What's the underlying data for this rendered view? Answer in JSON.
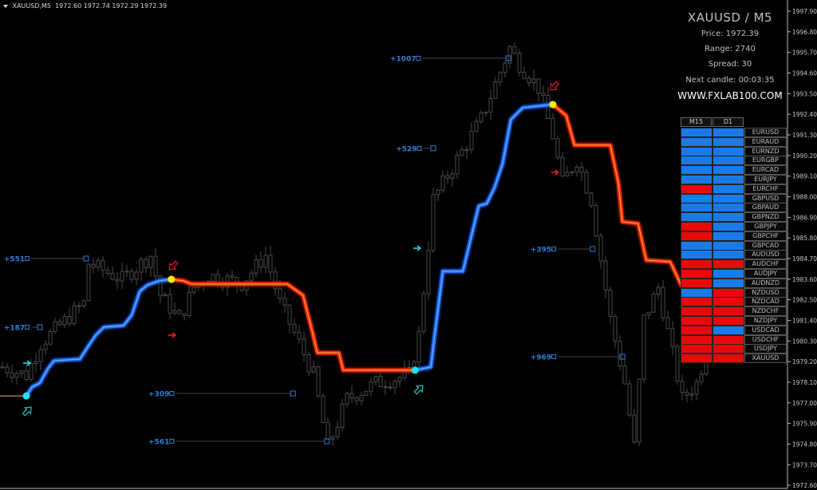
{
  "header": {
    "symbol_tf": "XAUUSD,M5",
    "ohlc": "1972.60 1972.74 1972.29 1972.39"
  },
  "panel": {
    "title": "XAUUSD  /  M5",
    "price": "Price: 1972.39",
    "range": "Range: 2740",
    "spread": "Spread: 30",
    "next_candle": "Next candle: 00:03:35",
    "website": "WWW.FXLAB100.COM",
    "columns": [
      "M15",
      "D1"
    ],
    "colors": {
      "up": "#1a7be8",
      "down": "#e80a0a"
    },
    "rows": [
      {
        "symbol": "EURUSD",
        "m15": "up",
        "d1": "up"
      },
      {
        "symbol": "EURAUD",
        "m15": "up",
        "d1": "up"
      },
      {
        "symbol": "EURNZD",
        "m15": "up",
        "d1": "up"
      },
      {
        "symbol": "EURGBP",
        "m15": "up",
        "d1": "up"
      },
      {
        "symbol": "EURCAD",
        "m15": "up",
        "d1": "up"
      },
      {
        "symbol": "EURJPY",
        "m15": "up",
        "d1": "up"
      },
      {
        "symbol": "EURCHF",
        "m15": "down",
        "d1": "up"
      },
      {
        "symbol": "GBPUSD",
        "m15": "up",
        "d1": "up"
      },
      {
        "symbol": "GBPAUD",
        "m15": "up",
        "d1": "up"
      },
      {
        "symbol": "GBPNZD",
        "m15": "up",
        "d1": "up"
      },
      {
        "symbol": "GBPJPY",
        "m15": "down",
        "d1": "up"
      },
      {
        "symbol": "GBPCHF",
        "m15": "down",
        "d1": "up"
      },
      {
        "symbol": "GBPCAD",
        "m15": "up",
        "d1": "up"
      },
      {
        "symbol": "AUDUSD",
        "m15": "up",
        "d1": "up"
      },
      {
        "symbol": "AUDCHF",
        "m15": "down",
        "d1": "down"
      },
      {
        "symbol": "AUDJPY",
        "m15": "down",
        "d1": "up"
      },
      {
        "symbol": "AUDNZD",
        "m15": "down",
        "d1": "up"
      },
      {
        "symbol": "NZDUSD",
        "m15": "up",
        "d1": "down"
      },
      {
        "symbol": "NZDCAD",
        "m15": "down",
        "d1": "down"
      },
      {
        "symbol": "NZDCHF",
        "m15": "down",
        "d1": "down"
      },
      {
        "symbol": "NZDJPY",
        "m15": "down",
        "d1": "down"
      },
      {
        "symbol": "USDCAD",
        "m15": "down",
        "d1": "up"
      },
      {
        "symbol": "USDCHF",
        "m15": "down",
        "d1": "down"
      },
      {
        "symbol": "USDJPY",
        "m15": "down",
        "d1": "down"
      },
      {
        "symbol": "XAUUSD",
        "m15": "down",
        "d1": "down"
      }
    ]
  },
  "chart_data": {
    "type": "candlestick",
    "price_axis": {
      "max": 1997.9,
      "min": 1972.6,
      "step": 1.1,
      "ticks": [
        "1997.90",
        "1996.80",
        "1995.70",
        "1994.60",
        "1993.50",
        "1992.40",
        "1991.30",
        "1990.20",
        "1989.10",
        "1988.00",
        "1986.90",
        "1985.80",
        "1984.70",
        "1983.60",
        "1982.50",
        "1981.40",
        "1980.30",
        "1979.20",
        "1978.10",
        "1977.00",
        "1975.90",
        "1974.80",
        "1973.70",
        "1972.60"
      ]
    },
    "colors": {
      "up_trend": "#1a6cff",
      "down_trend": "#ff2a00",
      "candle": "#4a4a4a",
      "label": "#2f7fd8"
    },
    "approx_price_path": [
      [
        0,
        1978.91
      ],
      [
        5,
        1978.48
      ],
      [
        8,
        1980.18
      ],
      [
        17,
        1982.31
      ],
      [
        18,
        1984.44
      ],
      [
        25,
        1983.59
      ],
      [
        31,
        1984.87
      ],
      [
        33,
        1982.74
      ],
      [
        37,
        1981.46
      ],
      [
        40,
        1983.17
      ],
      [
        43,
        1983.8
      ],
      [
        50,
        1983.38
      ],
      [
        55,
        1984.87
      ],
      [
        58,
        1982.31
      ],
      [
        62,
        1980.18
      ],
      [
        65,
        1978.48
      ],
      [
        68,
        1974.65
      ],
      [
        72,
        1977.2
      ],
      [
        78,
        1978.05
      ],
      [
        85,
        1978.48
      ],
      [
        87,
        1980.61
      ],
      [
        90,
        1987.85
      ],
      [
        93,
        1989.13
      ],
      [
        100,
        1992.11
      ],
      [
        106,
        1995.94
      ],
      [
        108,
        1995.09
      ],
      [
        112,
        1993.81
      ],
      [
        115,
        1991.26
      ],
      [
        117,
        1988.7
      ],
      [
        120,
        1989.98
      ],
      [
        123,
        1987.85
      ],
      [
        127,
        1981.46
      ],
      [
        130,
        1978.05
      ],
      [
        132,
        1974.65
      ],
      [
        134,
        1981.46
      ],
      [
        137,
        1983.17
      ],
      [
        142,
        1977.2
      ],
      [
        145,
        1978.05
      ],
      [
        147,
        1979.76
      ]
    ],
    "trend_line": [
      {
        "trend": "down",
        "points": [
          [
            0,
            1977.37
          ],
          [
            5.5,
            1977.37
          ]
        ]
      },
      {
        "trend": "up",
        "points": [
          [
            5.5,
            1977.37
          ],
          [
            6.7,
            1977.84
          ],
          [
            8.3,
            1978.05
          ],
          [
            10,
            1978.82
          ],
          [
            11.3,
            1979.25
          ],
          [
            16.7,
            1979.33
          ],
          [
            18.3,
            1979.97
          ],
          [
            20,
            1980.61
          ],
          [
            21.7,
            1981.04
          ],
          [
            25.8,
            1981.12
          ],
          [
            27.5,
            1981.67
          ],
          [
            29.2,
            1982.95
          ],
          [
            30.8,
            1983.29
          ],
          [
            33.3,
            1983.51
          ],
          [
            35.8,
            1983.59
          ]
        ]
      },
      {
        "trend": "down",
        "points": [
          [
            35.8,
            1983.59
          ],
          [
            38.3,
            1983.51
          ],
          [
            40,
            1983.34
          ],
          [
            60,
            1983.34
          ],
          [
            63.3,
            1982.74
          ],
          [
            65,
            1981.04
          ],
          [
            66.3,
            1979.67
          ],
          [
            70.8,
            1979.67
          ],
          [
            71.7,
            1978.74
          ],
          [
            86.7,
            1978.74
          ]
        ]
      },
      {
        "trend": "up",
        "points": [
          [
            86.7,
            1978.74
          ],
          [
            90,
            1978.91
          ],
          [
            90.8,
            1980.61
          ],
          [
            92.5,
            1984.02
          ],
          [
            96.7,
            1984.02
          ],
          [
            98.3,
            1985.72
          ],
          [
            100,
            1987.51
          ],
          [
            101.7,
            1987.64
          ],
          [
            103.3,
            1988.49
          ],
          [
            105,
            1989.77
          ],
          [
            106.7,
            1992.11
          ],
          [
            109.2,
            1992.75
          ],
          [
            115.5,
            1992.92
          ]
        ]
      },
      {
        "trend": "down",
        "points": [
          [
            115.5,
            1992.92
          ],
          [
            118.3,
            1992.32
          ],
          [
            120,
            1990.75
          ],
          [
            127.5,
            1990.75
          ],
          [
            129.2,
            1988.7
          ],
          [
            130,
            1986.66
          ],
          [
            133.3,
            1986.57
          ],
          [
            135,
            1984.61
          ],
          [
            140,
            1984.53
          ],
          [
            142.5,
            1983.17
          ]
        ]
      }
    ],
    "signal_dots": [
      {
        "type": "buy",
        "bar": 5.5,
        "price": 1977.37,
        "color": "#22e0f0"
      },
      {
        "type": "sell",
        "bar": 35.8,
        "price": 1983.59,
        "color": "#ffee00"
      },
      {
        "type": "buy",
        "bar": 86.7,
        "price": 1978.74,
        "color": "#22e0f0"
      },
      {
        "type": "sell",
        "bar": 115.5,
        "price": 1992.92,
        "color": "#ffee00"
      }
    ],
    "big_arrows": [
      {
        "type": "buy",
        "bar": 5.7,
        "price": 1976.56
      },
      {
        "type": "sell",
        "bar": 36.2,
        "price": 1984.32
      },
      {
        "type": "buy",
        "bar": 87.5,
        "price": 1977.71
      },
      {
        "type": "sell",
        "bar": 115.8,
        "price": 1993.9
      }
    ],
    "small_arrows": [
      {
        "type": "buy",
        "bar": 5.5,
        "price": 1979.12
      },
      {
        "type": "sell",
        "bar": 35.8,
        "price": 1980.61
      },
      {
        "type": "buy",
        "bar": 87,
        "price": 1985.25
      },
      {
        "type": "sell",
        "bar": 115.8,
        "price": 1989.3
      }
    ],
    "pip_labels": [
      {
        "text": "+551",
        "price": 1984.7,
        "from_bar": 0.8,
        "to_bar": 18
      },
      {
        "text": "+187",
        "price": 1981.04,
        "from_bar": 0.8,
        "to_bar": 8.3
      },
      {
        "text": "+309",
        "price": 1977.5,
        "from_bar": 31,
        "to_bar": 61.2
      },
      {
        "text": "+561",
        "price": 1974.95,
        "from_bar": 31,
        "to_bar": 68.3
      },
      {
        "text": "+1007",
        "price": 1995.39,
        "from_bar": 81.5,
        "to_bar": 106.2
      },
      {
        "text": "+529",
        "price": 1990.58,
        "from_bar": 82.7,
        "to_bar": 90.5
      },
      {
        "text": "+395",
        "price": 1985.21,
        "from_bar": 110.8,
        "to_bar": 123.8
      },
      {
        "text": "+969",
        "price": 1979.46,
        "from_bar": 110.8,
        "to_bar": 130
      }
    ]
  }
}
